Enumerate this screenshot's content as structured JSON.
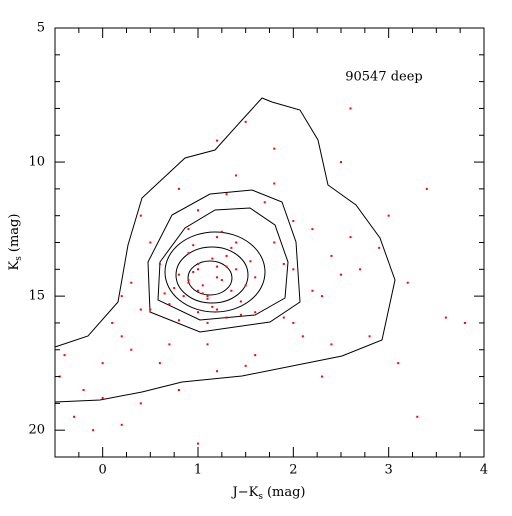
{
  "chart_data": {
    "type": "scatter",
    "annotation": "90547 deep",
    "xlabel": {
      "main": "J−K",
      "sub": "s",
      "unit": "(mag)"
    },
    "ylabel": {
      "main": "K",
      "sub": "s",
      "unit": "(mag)"
    },
    "color": "#ff0000",
    "xlim": [
      -0.5,
      4
    ],
    "ylim": [
      21,
      5
    ],
    "y_inverted": true,
    "xticks": [
      0,
      1,
      2,
      3,
      4
    ],
    "yticks": [
      5,
      10,
      15,
      20
    ],
    "xminorticks": [
      -0.25,
      0.25,
      0.5,
      0.75,
      1.25,
      1.5,
      1.75,
      2.25,
      2.5,
      2.75,
      3.25,
      3.5,
      3.75
    ],
    "yminorticks": [
      6,
      7,
      8,
      9,
      11,
      12,
      13,
      14,
      16,
      17,
      18,
      19
    ],
    "x": [
      0.8,
      1.0,
      1.2,
      1.1,
      0.9,
      1.3,
      1.4,
      0.7,
      1.5,
      1.0,
      1.2,
      0.95,
      1.05,
      1.25,
      1.35,
      0.85,
      1.15,
      1.45,
      0.75,
      1.6,
      1.1,
      1.3,
      0.9,
      1.0,
      1.2,
      1.4,
      0.8,
      1.55,
      1.05,
      1.25,
      0.65,
      1.15,
      1.35,
      0.95,
      1.45,
      1.0,
      1.2,
      1.1,
      0.9,
      1.3,
      0.2,
      0.5,
      1.8,
      2.0,
      0.3,
      2.2,
      1.9,
      0.4,
      2.4,
      0.6,
      1.7,
      2.1,
      0.1,
      2.3,
      0.8,
      1.6,
      2.5,
      0.5,
      1.2,
      1.4,
      0.0,
      2.6,
      0.7,
      1.0,
      2.0,
      0.3,
      1.8,
      1.5,
      0.9,
      2.2,
      0.4,
      1.3,
      2.7,
      0.6,
      1.1,
      2.0,
      1.6,
      0.2,
      2.4,
      1.9,
      -0.4,
      -0.2,
      3.0,
      3.2,
      2.8,
      -0.3,
      0.0,
      3.4,
      1.5,
      1.8,
      2.5,
      3.1,
      -0.1,
      0.4,
      2.9,
      1.2,
      3.6,
      0.8,
      2.3,
      -0.45,
      3.3,
      1.0,
      2.6,
      0.2,
      3.8
    ],
    "y": [
      14.2,
      14.8,
      13.9,
      15.1,
      14.5,
      13.5,
      14.0,
      15.3,
      14.6,
      13.8,
      15.5,
      14.1,
      14.9,
      14.4,
      13.2,
      15.0,
      13.6,
      15.2,
      14.7,
      14.3,
      16.0,
      15.8,
      13.4,
      15.6,
      12.8,
      13.0,
      15.9,
      13.7,
      14.6,
      12.6,
      14.9,
      15.4,
      14.8,
      13.1,
      15.7,
      14.0,
      14.3,
      15.0,
      14.4,
      13.9,
      16.5,
      15.5,
      13.0,
      14.0,
      17.0,
      12.5,
      15.8,
      12.0,
      13.5,
      17.5,
      11.5,
      16.5,
      16.0,
      15.0,
      11.0,
      17.2,
      14.2,
      13.0,
      17.8,
      10.5,
      17.5,
      12.8,
      16.8,
      11.8,
      16.0,
      14.5,
      10.8,
      17.6,
      12.5,
      14.8,
      15.5,
      11.2,
      14.0,
      13.8,
      16.8,
      12.2,
      15.6,
      15.0,
      16.8,
      13.8,
      17.2,
      18.5,
      12.0,
      14.5,
      16.5,
      19.5,
      18.8,
      11.0,
      8.5,
      9.5,
      10.0,
      17.5,
      20.0,
      19.0,
      13.2,
      9.2,
      15.8,
      18.5,
      18.0,
      18.0,
      19.5,
      20.5,
      8.0,
      19.8,
      16.0
    ]
  }
}
